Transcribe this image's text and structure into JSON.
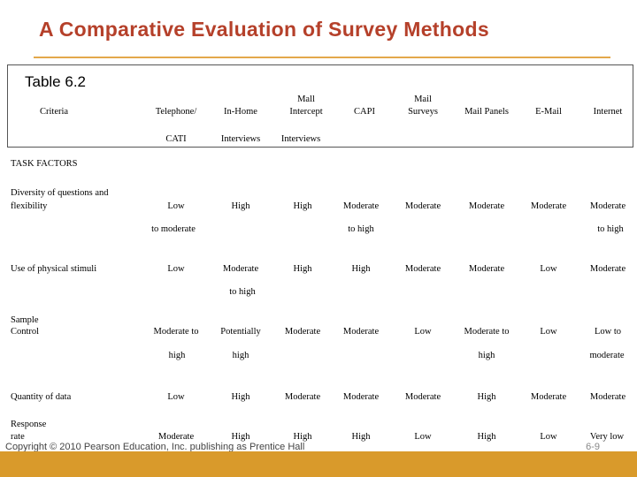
{
  "title": "A Comparative Evaluation of Survey Methods",
  "caption": "Table 6.2",
  "header": {
    "criteria": "Criteria",
    "telephone_l1": "Telephone/",
    "telephone_l2": "CATI",
    "inhome_l1": "In-Home",
    "inhome_l2": "Interviews",
    "mall_l1": "Mall",
    "mall_l2": "Intercept",
    "mall_l3": "Interviews",
    "capi": "CAPI",
    "mailsurveys_l1": "Mail",
    "mailsurveys_l2": "Surveys",
    "mailpanels": "Mail Panels",
    "email": "E-Mail",
    "internet": "Internet"
  },
  "section": "TASK FACTORS",
  "rows": {
    "diversity": {
      "label_l1": "Diversity of questions and",
      "label_l2": "flexibility",
      "tel": "Low",
      "tel_2": "to moderate",
      "inhome": "High",
      "mall": "High",
      "capi": "Moderate",
      "capi_2": "to high",
      "mailsurveys": "Moderate",
      "mailpanels": "Moderate",
      "email": "Moderate",
      "internet": "Moderate",
      "internet_2": "to high"
    },
    "stimuli": {
      "label": "Use of physical stimuli",
      "tel": "Low",
      "inhome": "Moderate",
      "inhome_2": "to high",
      "mall": "High",
      "capi": "High",
      "mailsurveys": "Moderate",
      "mailpanels": "Moderate",
      "email": "Low",
      "internet": "Moderate"
    },
    "sample": {
      "label_l1": "Sample",
      "label_l2": "Control",
      "tel": "Moderate to",
      "tel_2": "high",
      "inhome": "Potentially",
      "inhome_2": "high",
      "mall": "Moderate",
      "capi": "Moderate",
      "mailsurveys": "Low",
      "mailpanels": "Moderate  to",
      "mailpanels_2": "high",
      "email": "Low",
      "internet": "Low to",
      "internet_2": "moderate"
    },
    "quantity": {
      "label": "Quantity of data",
      "tel": "Low",
      "inhome": "High",
      "mall": "Moderate",
      "capi": "Moderate",
      "mailsurveys": "Moderate",
      "mailpanels": "High",
      "email": "Moderate",
      "internet": "Moderate"
    },
    "response": {
      "label_l1": "Response",
      "label_l2": "rate",
      "tel": "Moderate",
      "inhome": "High",
      "mall": "High",
      "capi": "High",
      "mailsurveys": "Low",
      "mailpanels": "High",
      "email": "Low",
      "internet": "Very low"
    }
  },
  "footer": "Copyright © 2010 Pearson Education, Inc. publishing as Prentice Hall",
  "page_number": "6-9",
  "colors": {
    "title": "#b5402a",
    "accent": "#e3a84a",
    "bar": "#d99a2b"
  }
}
